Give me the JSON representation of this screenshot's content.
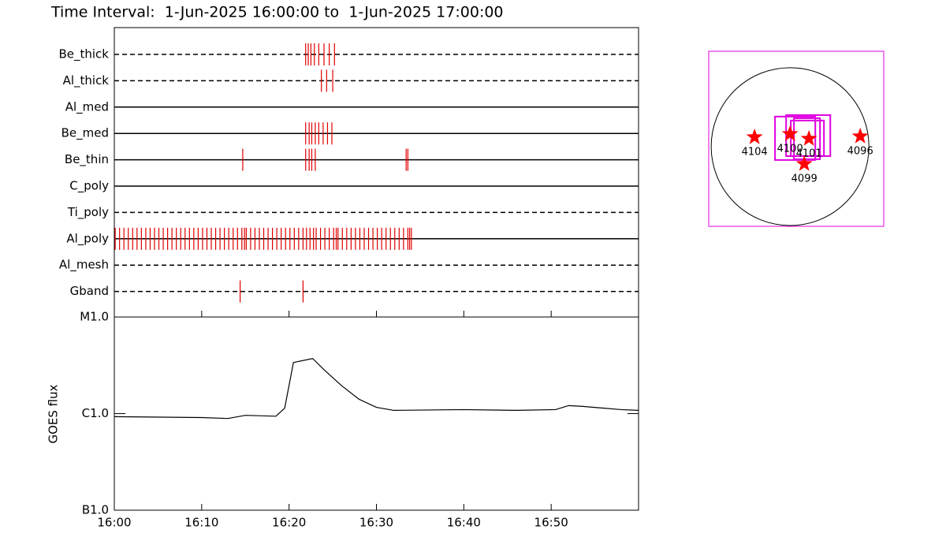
{
  "chart_data": [
    {
      "type": "timeline",
      "title": "Time Interval:  1-Jun-2025 16:00:00 to  1-Jun-2025 17:00:00",
      "xlim": [
        0,
        60
      ],
      "color": "#e00000",
      "rows": [
        {
          "name": "Be_thick",
          "line": "dashed",
          "times": [
            21.9,
            22.2,
            22.5,
            22.9,
            23.4,
            24.0,
            24.6,
            25.2
          ]
        },
        {
          "name": "Al_thick",
          "line": "dashed",
          "times": [
            23.7,
            24.3,
            25.0
          ]
        },
        {
          "name": "Al_med",
          "line": "solid",
          "times": []
        },
        {
          "name": "Be_med",
          "line": "solid",
          "times": [
            21.9,
            22.3,
            22.6,
            23.0,
            23.4,
            23.9,
            24.4,
            24.9
          ]
        },
        {
          "name": "Be_thin",
          "line": "solid",
          "times": [
            14.7,
            21.9,
            22.3,
            22.6,
            23.0,
            33.4,
            33.6
          ]
        },
        {
          "name": "C_poly",
          "line": "solid",
          "times": []
        },
        {
          "name": "Ti_poly",
          "line": "dashed",
          "times": []
        },
        {
          "name": "Al_poly",
          "line": "solid",
          "times": [
            0.1,
            0.6,
            1.1,
            1.6,
            2.1,
            2.6,
            3.1,
            3.6,
            4.1,
            4.6,
            5.1,
            5.6,
            6.1,
            6.6,
            7.1,
            7.6,
            8.1,
            8.6,
            9.1,
            9.6,
            10.1,
            10.6,
            11.1,
            11.6,
            12.1,
            12.6,
            13.1,
            13.6,
            14.1,
            14.6,
            14.9,
            15.1,
            15.6,
            16.1,
            16.6,
            17.1,
            17.6,
            18.1,
            18.6,
            19.1,
            19.6,
            20.1,
            20.6,
            21.1,
            21.6,
            22.0,
            22.4,
            22.8,
            23.1,
            23.6,
            24.1,
            24.6,
            25.1,
            25.4,
            25.6,
            26.1,
            26.6,
            27.1,
            27.6,
            28.1,
            28.6,
            29.1,
            29.6,
            30.1,
            30.6,
            31.1,
            31.6,
            32.1,
            32.6,
            33.1,
            33.6,
            33.8,
            34.0
          ]
        },
        {
          "name": "Al_mesh",
          "line": "dashed",
          "times": []
        },
        {
          "name": "Gband",
          "line": "dashed",
          "times": [
            14.4,
            21.6
          ]
        }
      ]
    },
    {
      "type": "line",
      "ylabel": "GOES flux",
      "log_scale": true,
      "color": "#000000",
      "xlim": [
        0,
        60
      ],
      "ylim": [
        1e-07,
        1e-05
      ],
      "xticks": [
        {
          "value": 0,
          "label": "16:00"
        },
        {
          "value": 10,
          "label": "16:10"
        },
        {
          "value": 20,
          "label": "16:20"
        },
        {
          "value": 30,
          "label": "16:30"
        },
        {
          "value": 40,
          "label": "16:40"
        },
        {
          "value": 50,
          "label": "16:50"
        }
      ],
      "yticks": [
        {
          "value": 1e-07,
          "label": "B1.0"
        },
        {
          "value": 1e-06,
          "label": "C1.0"
        },
        {
          "value": 1e-05,
          "label": "M1.0"
        }
      ],
      "x": [
        0,
        10,
        13,
        15,
        18.5,
        19.5,
        20.5,
        22.7,
        24,
        26,
        28,
        30,
        32,
        40,
        46,
        50.5,
        52,
        53.5,
        58,
        60
      ],
      "values": [
        9.3e-07,
        9.1e-07,
        8.9e-07,
        9.6e-07,
        9.4e-07,
        1.14e-06,
        3.38e-06,
        3.72e-06,
        2.85e-06,
        1.95e-06,
        1.41e-06,
        1.16e-06,
        1.08e-06,
        1.1e-06,
        1.08e-06,
        1.1e-06,
        1.21e-06,
        1.19e-06,
        1.1e-06,
        1.08e-06
      ]
    },
    {
      "type": "map",
      "xlim": [
        -990,
        1140
      ],
      "ylim": [
        -970,
        1160
      ],
      "disk_radius": 960,
      "frame_color": "#e000e0",
      "marker_color": "#ff0000",
      "points": [
        {
          "label": "4104",
          "x": -432,
          "y": 115
        },
        {
          "label": "4100",
          "x": 0,
          "y": 154
        },
        {
          "label": "4101",
          "x": 230,
          "y": 96
        },
        {
          "label": "4096",
          "x": 854,
          "y": 125
        },
        {
          "label": "4099",
          "x": 173,
          "y": -211
        }
      ],
      "fov": [
        {
          "x": 62,
          "y": 101,
          "width": 490,
          "height": 528
        },
        {
          "x": 221,
          "y": 134,
          "width": 538,
          "height": 499
        },
        {
          "x": 211,
          "y": 101,
          "width": 403,
          "height": 432
        },
        {
          "x": 206,
          "y": 96,
          "width": 317,
          "height": 499
        }
      ]
    }
  ]
}
